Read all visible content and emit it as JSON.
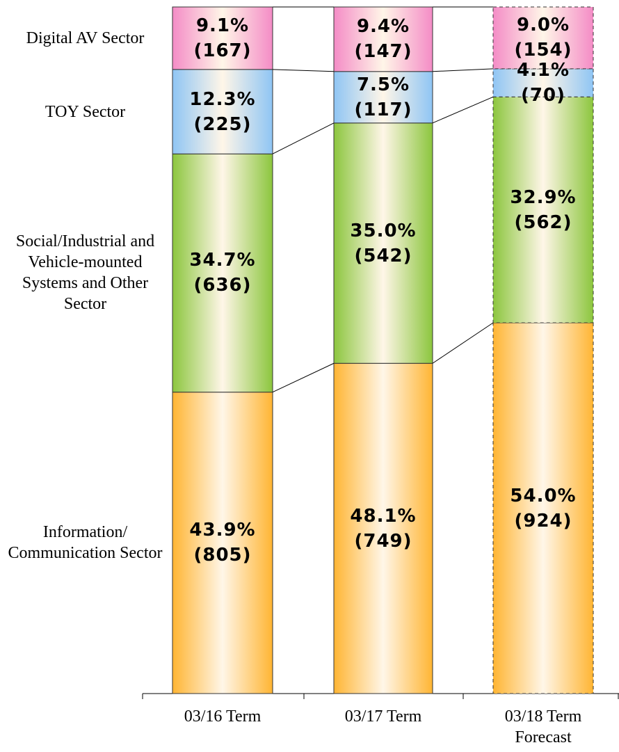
{
  "chart_data": {
    "type": "stacked_bar_100",
    "categories": [
      "03/16 Term",
      "03/17 Term",
      "03/18 Term Forecast"
    ],
    "ylim": [
      0,
      100
    ],
    "dashed": [
      false,
      false,
      true
    ],
    "series": [
      {
        "name": "Information/ Communication Sector",
        "color": "#ffb533",
        "values": [
          43.9,
          48.1,
          54.0
        ],
        "value_labels": [
          "43.9%",
          "48.1%",
          "54.0%"
        ],
        "amount_labels": [
          "(805)",
          "(749)",
          "(924)"
        ]
      },
      {
        "name": "Social/Industrial and Vehicle-mounted Systems and Other Sector",
        "color": "#8cc63e",
        "values": [
          34.7,
          35.0,
          32.9
        ],
        "value_labels": [
          "34.7%",
          "35.0%",
          "32.9%"
        ],
        "amount_labels": [
          "(636)",
          "(542)",
          "(562)"
        ]
      },
      {
        "name": "TOY Sector",
        "color": "#8fc5f4",
        "values": [
          12.3,
          7.5,
          4.1
        ],
        "value_labels": [
          "12.3%",
          "7.5%",
          "4.1%"
        ],
        "amount_labels": [
          "(225)",
          "(117)",
          "(70)"
        ]
      },
      {
        "name": "Digital AV Sector",
        "color": "#f48cc6",
        "values": [
          9.1,
          9.4,
          9.0
        ],
        "value_labels": [
          "9.1%",
          "9.4%",
          "9.0%"
        ],
        "amount_labels": [
          "(167)",
          "(147)",
          "(154)"
        ]
      }
    ]
  }
}
